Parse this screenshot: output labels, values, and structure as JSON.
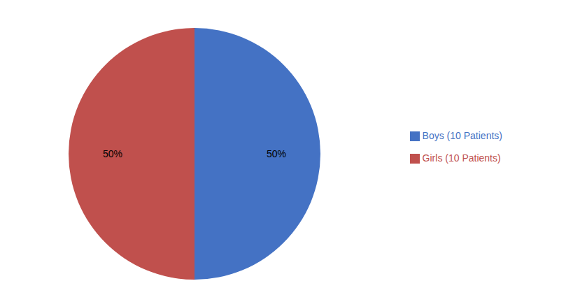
{
  "chart_data": {
    "type": "pie",
    "categories": [
      "Boys (10 Patients)",
      "Girls (10 Patients)"
    ],
    "values": [
      50,
      50
    ],
    "value_labels": [
      "50%",
      "50%"
    ],
    "colors": [
      "#4472C4",
      "#C0504D"
    ],
    "data_labels": true,
    "legend": "right"
  }
}
